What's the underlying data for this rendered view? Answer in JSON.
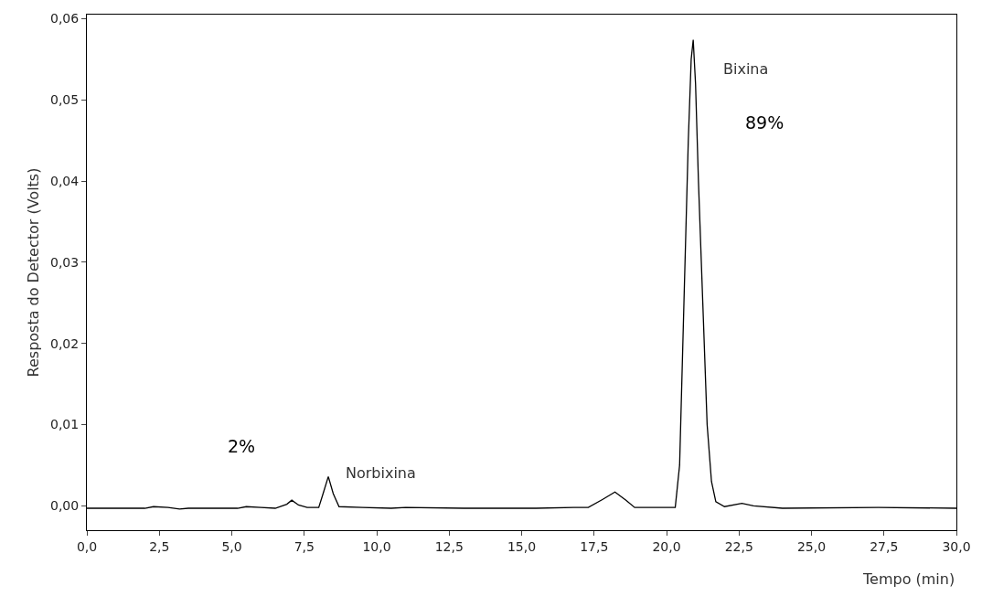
{
  "chart_data": {
    "type": "line",
    "xlabel": "Tempo (min)",
    "ylabel": "Resposta do Detector (Volts)",
    "x": [
      0,
      2.0,
      2.3,
      2.8,
      3.2,
      3.5,
      4.6,
      5.2,
      5.5,
      6.0,
      6.5,
      6.9,
      7.07,
      7.3,
      7.6,
      8.0,
      8.15,
      8.33,
      8.5,
      8.7,
      9.5,
      10.5,
      11.0,
      13.0,
      15.5,
      16.8,
      17.3,
      17.8,
      18.22,
      18.6,
      18.9,
      20.0,
      20.3,
      20.45,
      20.6,
      20.75,
      20.85,
      20.92,
      21.0,
      21.1,
      21.25,
      21.4,
      21.55,
      21.7,
      22.0,
      22.6,
      23.0,
      24.0,
      27.3,
      30.0
    ],
    "series": [
      {
        "color": "#000000",
        "values": [
          -0.0003,
          -0.0003,
          -0.0001,
          -0.0002,
          -0.0004,
          -0.0003,
          -0.0003,
          -0.0003,
          -0.0001,
          -0.0002,
          -0.0003,
          0.0002,
          0.0007,
          0.0001,
          -0.0002,
          -0.0002,
          0.0015,
          0.0036,
          0.0015,
          -0.0001,
          -0.0002,
          -0.0003,
          -0.0002,
          -0.0003,
          -0.0003,
          -0.0002,
          -0.0002,
          0.0008,
          0.0017,
          0.0007,
          -0.0002,
          -0.0002,
          -0.0002,
          0.005,
          0.025,
          0.045,
          0.055,
          0.0574,
          0.052,
          0.04,
          0.025,
          0.01,
          0.003,
          0.0005,
          -0.0001,
          0.0003,
          0.0,
          -0.0003,
          -0.0002,
          -0.0003
        ]
      }
    ],
    "annotations": [
      "Norbixina",
      "2%",
      "Bixina",
      "89%"
    ],
    "xlim": [
      0,
      30
    ],
    "ylim": [
      -0.003,
      0.0605
    ],
    "xticks": [
      {
        "value": 0,
        "label": "0,0"
      },
      {
        "value": 2.5,
        "label": "2,5"
      },
      {
        "value": 5,
        "label": "5,0"
      },
      {
        "value": 7.5,
        "label": "7,5"
      },
      {
        "value": 10,
        "label": "10,0"
      },
      {
        "value": 12.5,
        "label": "12,5"
      },
      {
        "value": 15,
        "label": "15,0"
      },
      {
        "value": 17.5,
        "label": "17,5"
      },
      {
        "value": 20,
        "label": "20,0"
      },
      {
        "value": 22.5,
        "label": "22,5"
      },
      {
        "value": 25,
        "label": "25,0"
      },
      {
        "value": 27.5,
        "label": "27,5"
      },
      {
        "value": 30,
        "label": "30,0"
      }
    ],
    "yticks": [
      {
        "value": 0,
        "label": "0,00"
      },
      {
        "value": 0.01,
        "label": "0,01"
      },
      {
        "value": 0.02,
        "label": "0,02"
      },
      {
        "value": 0.03,
        "label": "0,03"
      },
      {
        "value": 0.04,
        "label": "0,04"
      },
      {
        "value": 0.05,
        "label": "0,05"
      },
      {
        "value": 0.06,
        "label": "0,06"
      }
    ],
    "grid": false,
    "marker": "none",
    "line_style": "solid"
  }
}
